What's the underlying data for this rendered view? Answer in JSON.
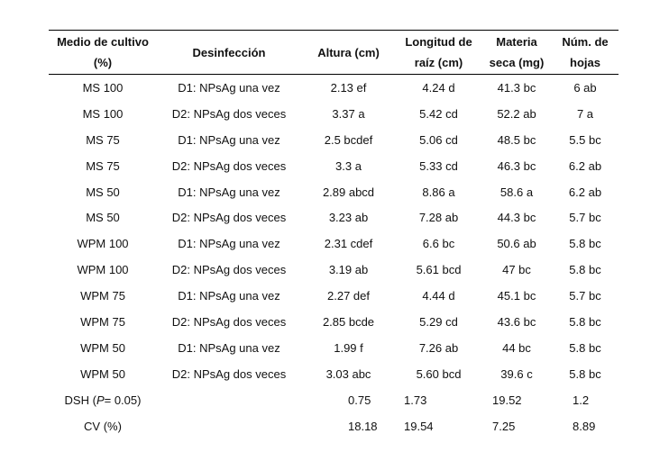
{
  "headers": {
    "medio": "Medio de cultivo (%)",
    "desinfeccion": "Desinfección",
    "altura": "Altura (cm)",
    "longitud_l1": "Longitud de",
    "longitud_l2": "raíz (cm)",
    "materia_l1": "Materia",
    "materia_l2": "seca (mg)",
    "hojas_l1": "Núm. de",
    "hojas_l2": "hojas"
  },
  "rows": [
    {
      "medio": "MS 100",
      "desinfeccion": "D1: NPsAg una vez",
      "altura": "2.13 ef",
      "longitud": "4.24 d",
      "materia": "41.3 bc",
      "hojas": "6 ab"
    },
    {
      "medio": "MS 100",
      "desinfeccion": "D2: NPsAg dos veces",
      "altura": "3.37 a",
      "longitud": "5.42 cd",
      "materia": "52.2 ab",
      "hojas": "7 a"
    },
    {
      "medio": "MS 75",
      "desinfeccion": "D1: NPsAg una vez",
      "altura": "2.5 bcdef",
      "longitud": "5.06 cd",
      "materia": "48.5 bc",
      "hojas": "5.5 bc"
    },
    {
      "medio": "MS 75",
      "desinfeccion": "D2: NPsAg dos veces",
      "altura": "3.3 a",
      "longitud": "5.33 cd",
      "materia": "46.3 bc",
      "hojas": "6.2 ab"
    },
    {
      "medio": "MS 50",
      "desinfeccion": "D1: NPsAg una vez",
      "altura": "2.89 abcd",
      "longitud": "8.86 a",
      "materia": "58.6 a",
      "hojas": "6.2 ab"
    },
    {
      "medio": "MS 50",
      "desinfeccion": "D2: NPsAg dos veces",
      "altura": "3.23 ab",
      "longitud": "7.28 ab",
      "materia": "44.3 bc",
      "hojas": "5.7 bc"
    },
    {
      "medio": "WPM 100",
      "desinfeccion": "D1: NPsAg una vez",
      "altura": "2.31 cdef",
      "longitud": "6.6 bc",
      "materia": "50.6 ab",
      "hojas": "5.8 bc"
    },
    {
      "medio": "WPM 100",
      "desinfeccion": "D2: NPsAg dos veces",
      "altura": "3.19 ab",
      "longitud": "5.61 bcd",
      "materia": "47 bc",
      "hojas": "5.8 bc"
    },
    {
      "medio": "WPM 75",
      "desinfeccion": "D1: NPsAg una vez",
      "altura": "2.27 def",
      "longitud": "4.44 d",
      "materia": "45.1 bc",
      "hojas": "5.7 bc"
    },
    {
      "medio": "WPM 75",
      "desinfeccion": "D2: NPsAg dos veces",
      "altura": "2.85 bcde",
      "longitud": "5.29 cd",
      "materia": "43.6 bc",
      "hojas": "5.8 bc"
    },
    {
      "medio": "WPM 50",
      "desinfeccion": "D1: NPsAg una vez",
      "altura": "1.99 f",
      "longitud": "7.26 ab",
      "materia": "44 bc",
      "hojas": "5.8 bc"
    },
    {
      "medio": "WPM 50",
      "desinfeccion": "D2: NPsAg dos veces",
      "altura": "3.03 abc",
      "longitud": "5.60 bcd",
      "materia": "39.6 c",
      "hojas": "5.8 bc"
    }
  ],
  "dsh": {
    "label_prefix": "DSH (",
    "label_italic": "P",
    "label_suffix": "= 0.05)",
    "altura": "0.75",
    "longitud": "1.73",
    "materia": "19.52",
    "hojas": "1.2"
  },
  "cv": {
    "label": "CV (%)",
    "altura": "18.18",
    "longitud": "19.54",
    "materia": "7.25",
    "hojas": "8.89"
  }
}
